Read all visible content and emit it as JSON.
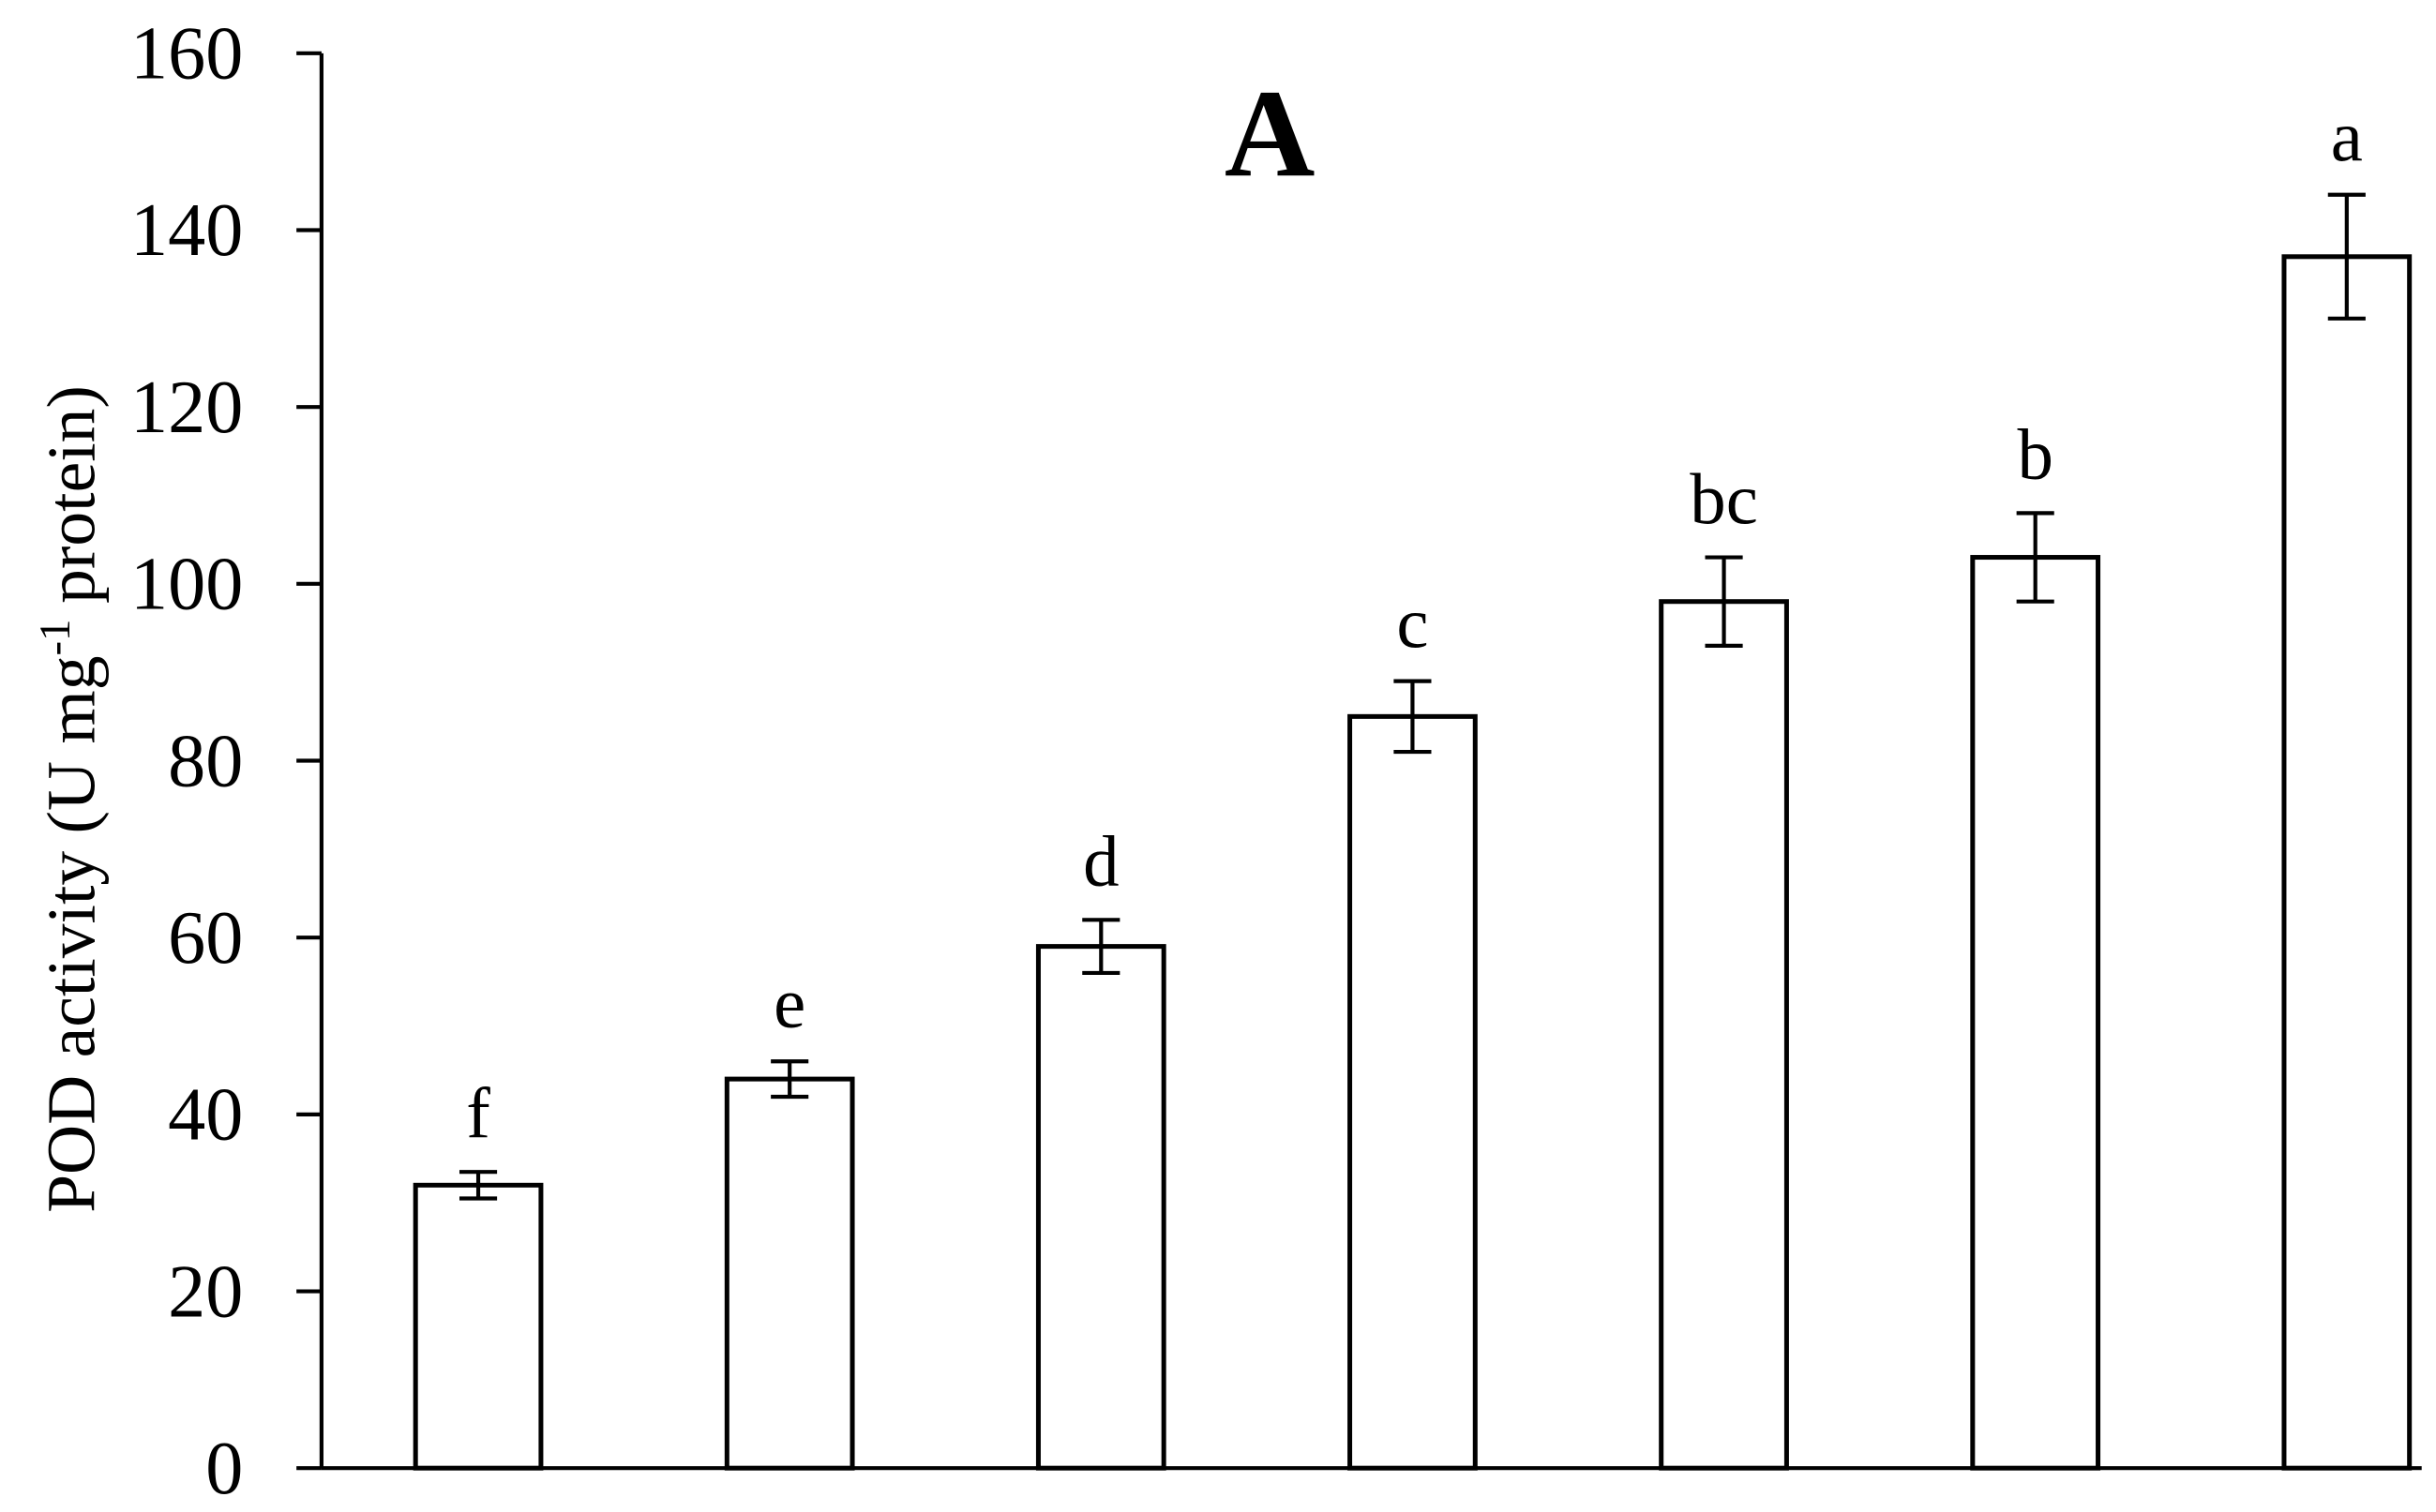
{
  "chart_data": {
    "type": "bar",
    "title": "A",
    "y_label_parts": [
      "POD activity (U mg",
      "-1",
      "protein)"
    ],
    "categories": [
      null,
      null,
      null,
      null,
      null,
      null,
      null
    ],
    "values": [
      32,
      44,
      59,
      85,
      98,
      103,
      137
    ],
    "errors": [
      1.5,
      2,
      3,
      4,
      5,
      5,
      7
    ],
    "significance_labels": [
      "f",
      "e",
      "d",
      "c",
      "bc",
      "b",
      "a"
    ],
    "color": "#ffffff",
    "ylim": [
      0,
      160
    ],
    "yticks": [
      0,
      20,
      40,
      60,
      80,
      100,
      120,
      140,
      160
    ],
    "grid": false
  }
}
